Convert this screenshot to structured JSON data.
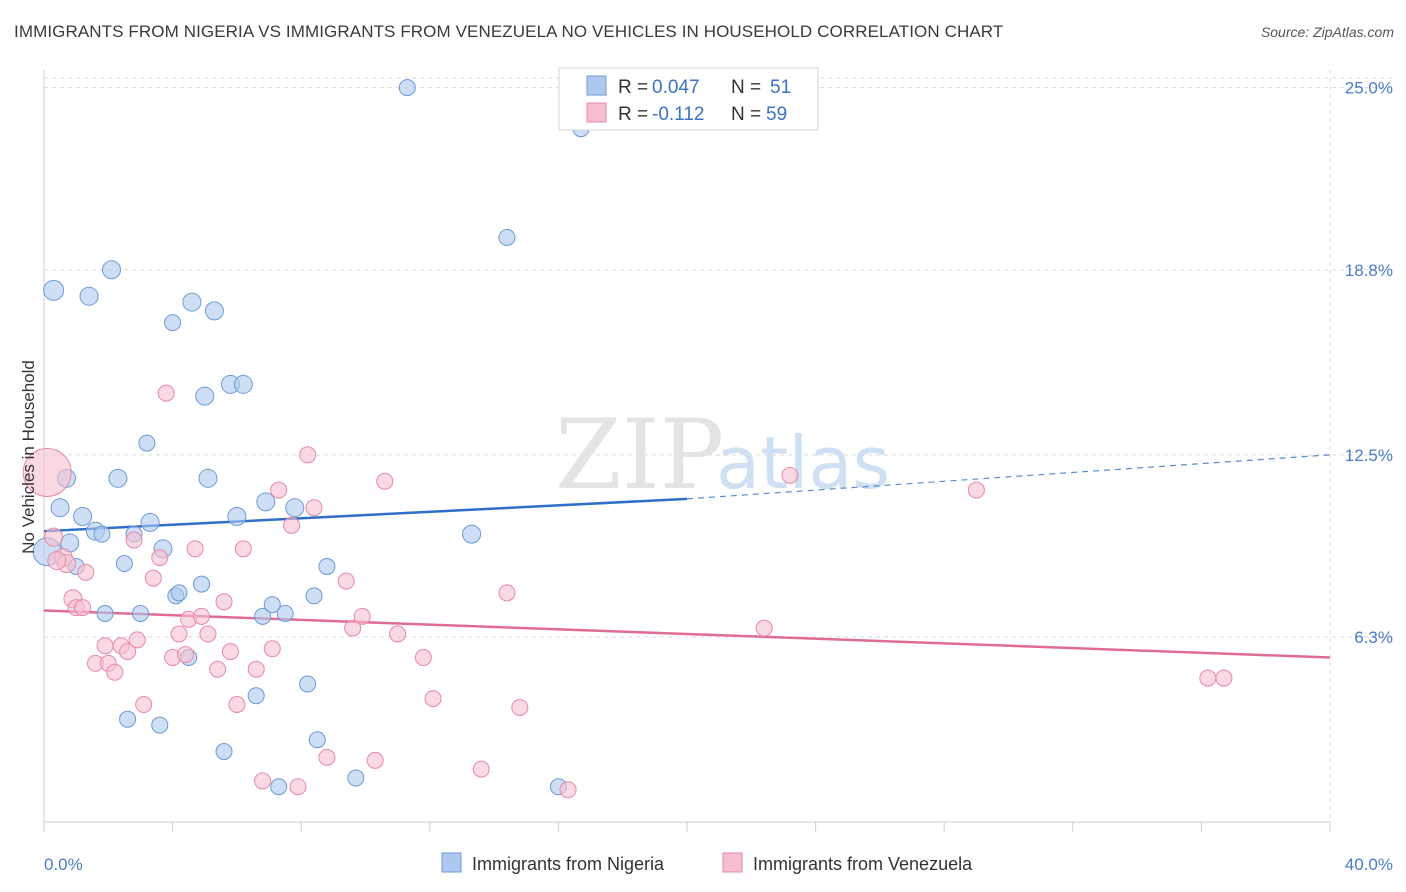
{
  "title": "IMMIGRANTS FROM NIGERIA VS IMMIGRANTS FROM VENEZUELA NO VEHICLES IN HOUSEHOLD CORRELATION CHART",
  "source": "Source: ZipAtlas.com",
  "watermark": {
    "zip": "ZIP",
    "atlas": "atlas"
  },
  "colors": {
    "nigeria_fill": "#aec9ef",
    "nigeria_stroke": "#6f9ad6",
    "nigeria_line": "#2f6fc7",
    "venezuela_fill": "#f6bfd0",
    "venezuela_stroke": "#e68aa7",
    "venezuela_line": "#e06c95",
    "grid": "#d9d9d9",
    "tick_text": "#4a7cc7"
  },
  "legend": {
    "rows": [
      {
        "r_label": "R = ",
        "r_value": "0.047",
        "n_label": "N = ",
        "n_value": "51"
      },
      {
        "r_label": "R = ",
        "r_value": "-0.112",
        "n_label": "N = ",
        "n_value": "59"
      }
    ]
  },
  "chart_data": {
    "type": "scatter",
    "xlabel": "",
    "ylabel": "No Vehicles in Household",
    "xlim": [
      0,
      40
    ],
    "ylim": [
      0,
      25.6
    ],
    "x_tick_labels": [
      "0.0%",
      "40.0%"
    ],
    "y_ticks": [
      6.3,
      12.5,
      18.8,
      25.0
    ],
    "y_tick_labels": [
      "6.3%",
      "12.5%",
      "18.8%",
      "25.0%"
    ],
    "grid": true,
    "legend_position": "top-center",
    "series": [
      {
        "name": "Immigrants from Nigeria",
        "color": "#aec9ef",
        "points": [
          [
            0.1,
            9.2,
            14
          ],
          [
            0.3,
            18.1,
            10
          ],
          [
            0.5,
            10.7,
            9
          ],
          [
            0.7,
            11.7,
            9
          ],
          [
            0.8,
            9.5,
            9
          ],
          [
            1.0,
            8.7,
            8
          ],
          [
            1.2,
            10.4,
            9
          ],
          [
            1.4,
            17.9,
            9
          ],
          [
            1.6,
            9.9,
            9
          ],
          [
            1.8,
            9.8,
            8
          ],
          [
            1.9,
            7.1,
            8
          ],
          [
            2.1,
            18.8,
            9
          ],
          [
            2.3,
            11.7,
            9
          ],
          [
            2.5,
            8.8,
            8
          ],
          [
            2.6,
            3.5,
            8
          ],
          [
            2.8,
            9.8,
            8
          ],
          [
            3.0,
            7.1,
            8
          ],
          [
            3.2,
            12.9,
            8
          ],
          [
            3.3,
            10.2,
            9
          ],
          [
            3.6,
            3.3,
            8
          ],
          [
            3.7,
            9.3,
            9
          ],
          [
            4.0,
            17.0,
            8
          ],
          [
            4.1,
            7.7,
            8
          ],
          [
            4.2,
            7.8,
            8
          ],
          [
            4.5,
            5.6,
            8
          ],
          [
            4.6,
            17.7,
            9
          ],
          [
            4.9,
            8.1,
            8
          ],
          [
            5.0,
            14.5,
            9
          ],
          [
            5.1,
            11.7,
            9
          ],
          [
            5.3,
            17.4,
            9
          ],
          [
            5.6,
            2.4,
            8
          ],
          [
            5.8,
            14.9,
            9
          ],
          [
            6.0,
            10.4,
            9
          ],
          [
            6.2,
            14.9,
            9
          ],
          [
            6.6,
            4.3,
            8
          ],
          [
            6.8,
            7.0,
            8
          ],
          [
            6.9,
            10.9,
            9
          ],
          [
            7.1,
            7.4,
            8
          ],
          [
            7.3,
            1.2,
            8
          ],
          [
            7.5,
            7.1,
            8
          ],
          [
            7.8,
            10.7,
            9
          ],
          [
            8.2,
            4.7,
            8
          ],
          [
            8.4,
            7.7,
            8
          ],
          [
            8.5,
            2.8,
            8
          ],
          [
            8.8,
            8.7,
            8
          ],
          [
            9.7,
            1.5,
            8
          ],
          [
            11.3,
            25.0,
            8
          ],
          [
            13.3,
            9.8,
            9
          ],
          [
            14.4,
            19.9,
            8
          ],
          [
            16.0,
            1.2,
            8
          ],
          [
            16.7,
            23.6,
            8
          ]
        ]
      },
      {
        "name": "Immigrants from Venezuela",
        "color": "#f6bfd0",
        "points": [
          [
            0.1,
            11.9,
            24
          ],
          [
            0.3,
            9.7,
            9
          ],
          [
            0.6,
            9.0,
            9
          ],
          [
            0.7,
            8.8,
            9
          ],
          [
            0.9,
            7.6,
            9
          ],
          [
            1.0,
            7.3,
            8
          ],
          [
            1.2,
            7.3,
            8
          ],
          [
            1.3,
            8.5,
            8
          ],
          [
            1.6,
            5.4,
            8
          ],
          [
            1.9,
            6.0,
            8
          ],
          [
            2.0,
            5.4,
            8
          ],
          [
            2.2,
            5.1,
            8
          ],
          [
            2.4,
            6.0,
            8
          ],
          [
            2.6,
            5.8,
            8
          ],
          [
            2.8,
            9.6,
            8
          ],
          [
            2.9,
            6.2,
            8
          ],
          [
            3.1,
            4.0,
            8
          ],
          [
            3.4,
            8.3,
            8
          ],
          [
            3.6,
            9.0,
            8
          ],
          [
            3.8,
            14.6,
            8
          ],
          [
            4.0,
            5.6,
            8
          ],
          [
            4.2,
            6.4,
            8
          ],
          [
            4.4,
            5.7,
            8
          ],
          [
            4.5,
            6.9,
            8
          ],
          [
            4.7,
            9.3,
            8
          ],
          [
            4.9,
            7.0,
            8
          ],
          [
            5.1,
            6.4,
            8
          ],
          [
            5.4,
            5.2,
            8
          ],
          [
            5.6,
            7.5,
            8
          ],
          [
            5.8,
            5.8,
            8
          ],
          [
            6.0,
            4.0,
            8
          ],
          [
            6.2,
            9.3,
            8
          ],
          [
            6.6,
            5.2,
            8
          ],
          [
            6.8,
            1.4,
            8
          ],
          [
            7.1,
            5.9,
            8
          ],
          [
            7.3,
            11.3,
            8
          ],
          [
            7.7,
            10.1,
            8
          ],
          [
            7.9,
            1.2,
            8
          ],
          [
            8.2,
            12.5,
            8
          ],
          [
            8.4,
            10.7,
            8
          ],
          [
            8.8,
            2.2,
            8
          ],
          [
            9.4,
            8.2,
            8
          ],
          [
            9.6,
            6.6,
            8
          ],
          [
            9.9,
            7.0,
            8
          ],
          [
            10.3,
            2.1,
            8
          ],
          [
            10.6,
            11.6,
            8
          ],
          [
            11.0,
            6.4,
            8
          ],
          [
            11.8,
            5.6,
            8
          ],
          [
            12.1,
            4.2,
            8
          ],
          [
            13.6,
            1.8,
            8
          ],
          [
            14.4,
            7.8,
            8
          ],
          [
            14.8,
            3.9,
            8
          ],
          [
            16.3,
            1.1,
            8
          ],
          [
            22.4,
            6.6,
            8
          ],
          [
            23.2,
            11.8,
            8
          ],
          [
            29.0,
            11.3,
            8
          ],
          [
            36.2,
            4.9,
            8
          ],
          [
            36.7,
            4.9,
            8
          ],
          [
            0.4,
            8.9,
            9
          ]
        ]
      }
    ],
    "trend_lines": [
      {
        "series": "Immigrants from Nigeria",
        "x0": 0,
        "y0": 9.9,
        "x1": 20,
        "y1": 11.0,
        "dash_to_x": 40,
        "dash_to_y": 12.5
      },
      {
        "series": "Immigrants from Venezuela",
        "x0": 0,
        "y0": 7.2,
        "x1": 40,
        "y1": 5.6
      }
    ]
  }
}
